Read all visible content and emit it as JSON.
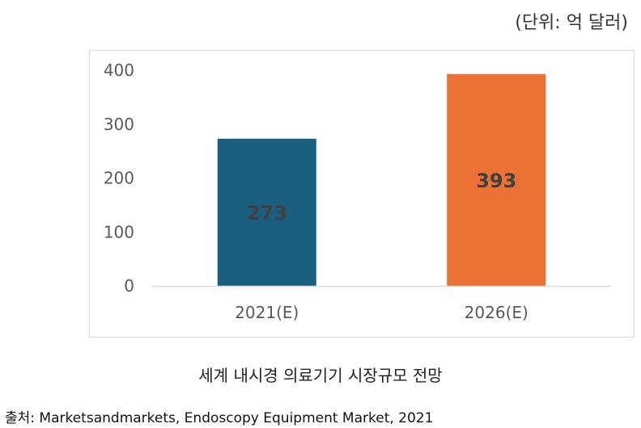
{
  "unit_label": "(단위: 억 달러)",
  "caption": "세계 내시경 의료기기 시장규모 전망",
  "source": "출처: Marketsandmarkets, Endoscopy Equipment Market, 2021",
  "colors": {
    "bar_2021": "#1a5e80",
    "bar_2026": "#eb7135",
    "axis": "#d9d9d9",
    "tick_text": "#595959",
    "data_label": "#404040"
  },
  "chart_data": {
    "type": "bar",
    "categories": [
      "2021(E)",
      "2026(E)"
    ],
    "values": [
      273,
      393
    ],
    "data_labels": [
      "273",
      "393"
    ],
    "yticks": [
      0,
      100,
      200,
      300,
      400
    ],
    "ylim": [
      0,
      400
    ],
    "grid": false,
    "legend": "none",
    "title": "",
    "xlabel": "",
    "ylabel": ""
  }
}
